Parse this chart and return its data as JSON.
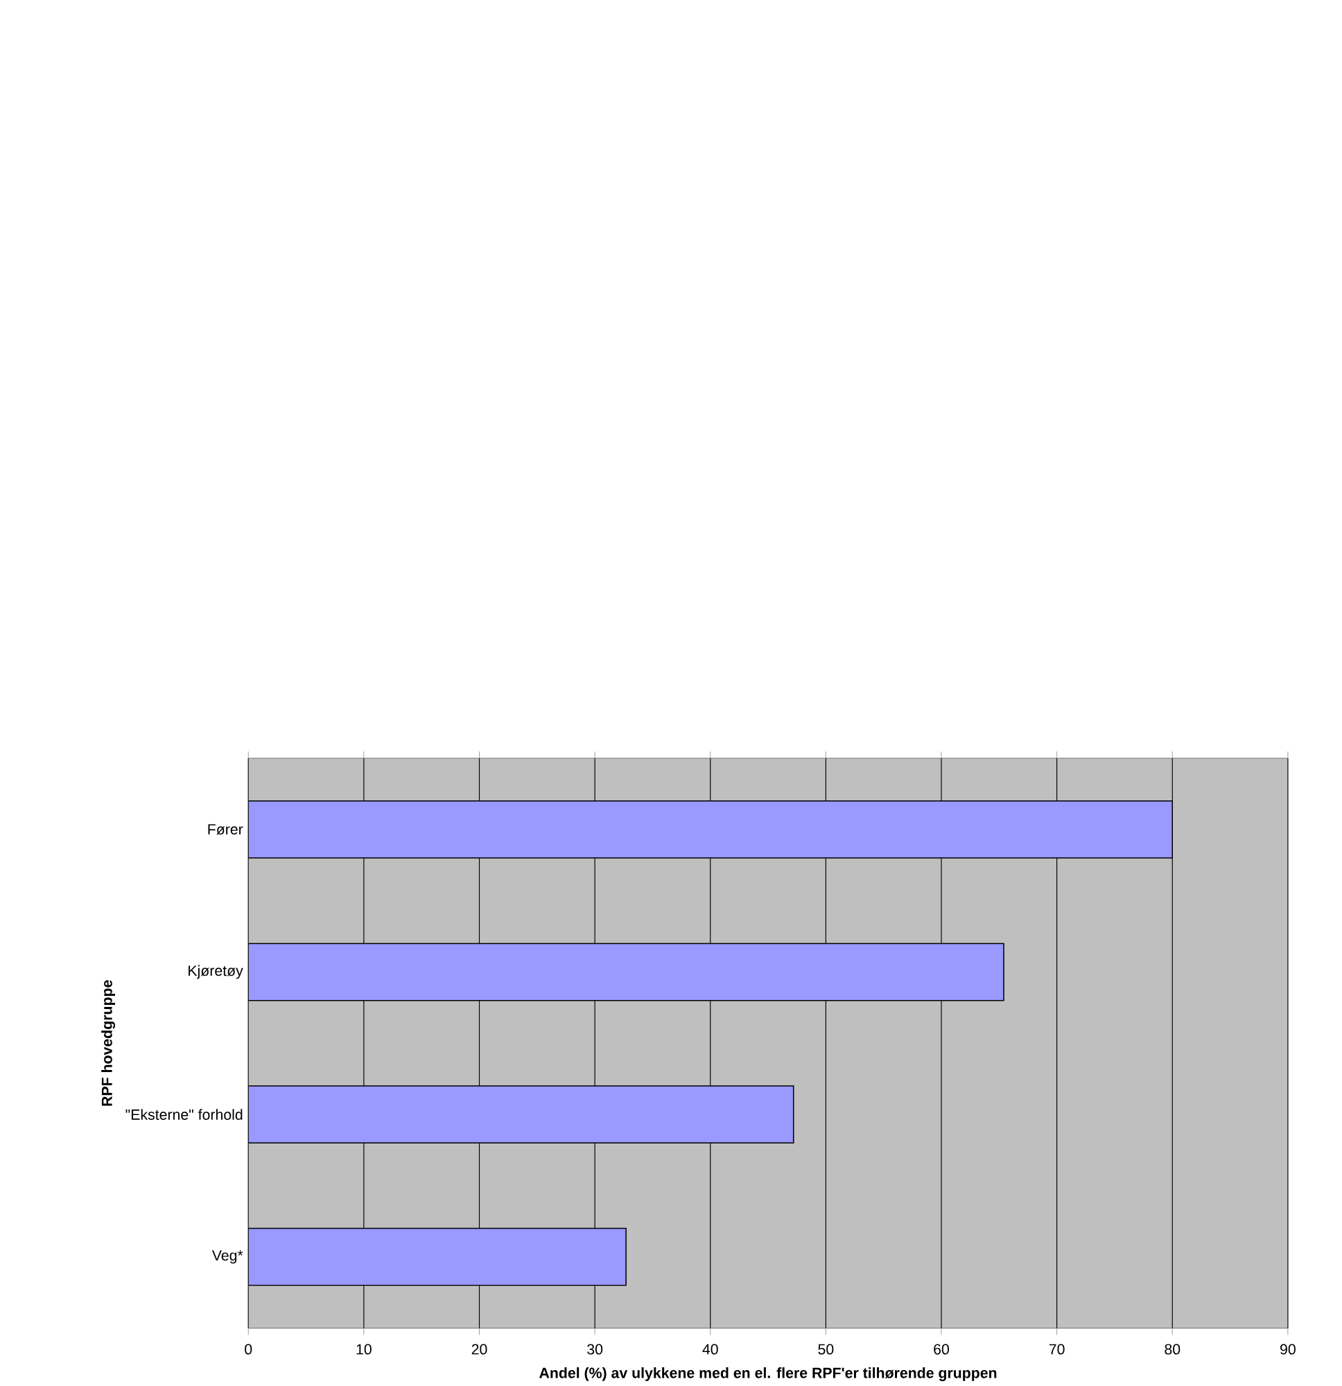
{
  "chart_data": {
    "type": "bar",
    "orientation": "horizontal",
    "ylabel": "RPF hovedgruppe",
    "xlabel": "Andel (%) av ulykkene med en el. flere RPF'er tilhørende gruppen",
    "categories": [
      "Fører",
      "Kjøretøy",
      "\"Eksterne\" forhold",
      "Veg*"
    ],
    "values": [
      80,
      65.4,
      47.2,
      32.7
    ],
    "color": "#9999ff",
    "xlim": [
      0,
      90
    ],
    "xticks": [
      0,
      10,
      20,
      30,
      40,
      50,
      60,
      70,
      80,
      90
    ],
    "grid": "x"
  }
}
